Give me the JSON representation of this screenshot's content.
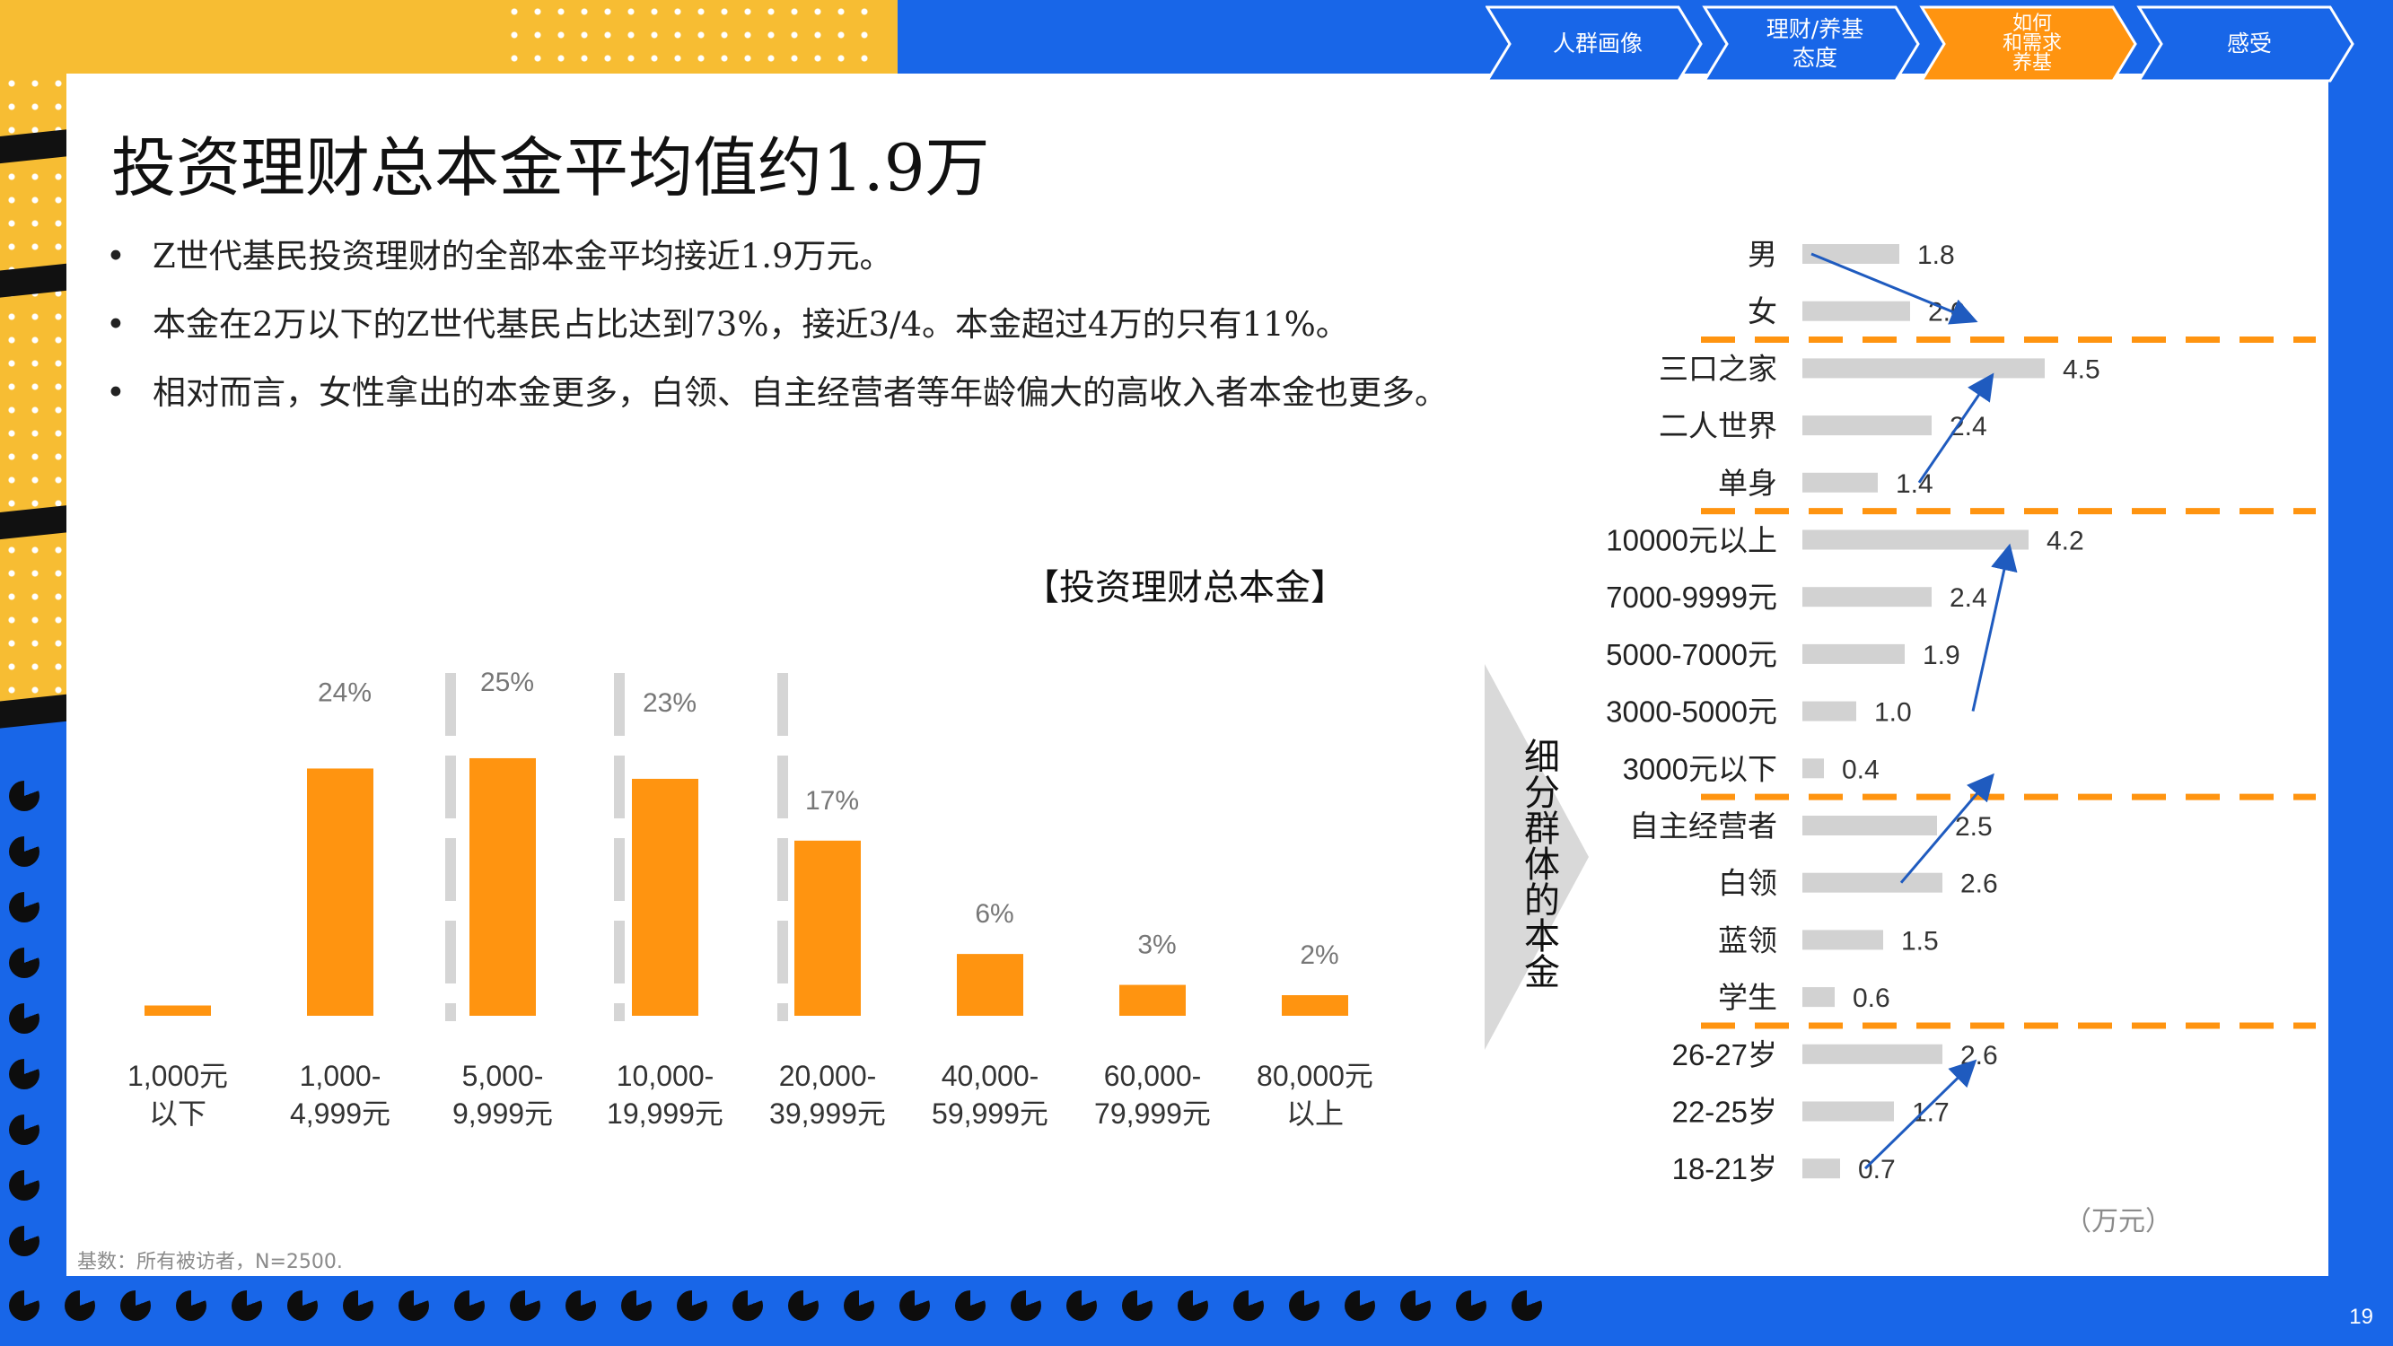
{
  "slide": {
    "title": "投资理财总本金平均值约1.9万",
    "page_number": "19",
    "bullets": [
      "Z世代基民投资理财的全部本金平均接近1.9万元。",
      "本金在2万以下的Z世代基民占比达到73%，接近3/4。本金超过4万的只有11%。",
      "相对而言，女性拿出的本金更多，白领、自主经营者等年龄偏大的高收入者本金也更多。"
    ],
    "base_note": "基数：所有被访者，N=2500.",
    "side_label": "细分群体的本金",
    "unit_label": "（万元）"
  },
  "nav": {
    "tabs": [
      {
        "label": "人群画像",
        "active": false
      },
      {
        "label": "理财/养基\n态度",
        "active": false
      },
      {
        "label": "如何\n和需求\n养基",
        "active": true
      },
      {
        "label": "感受",
        "active": false
      }
    ]
  },
  "colors": {
    "background_blue": "#1866e8",
    "accent_orange": "#ff9410",
    "bar_gray": "#d2d2d2",
    "deco_yellow": "#f7bd33",
    "arrow_blue": "#1f5bbf"
  },
  "chart_data": [
    {
      "type": "bar",
      "title": "【投资理财总本金】",
      "categories": [
        "1,000元\n以下",
        "1,000-\n4,999元",
        "5,000-\n9,999元",
        "10,000-\n19,999元",
        "20,000-\n39,999元",
        "40,000-\n59,999元",
        "60,000-\n79,999元",
        "80,000元\n以上"
      ],
      "values": [
        1,
        24,
        25,
        23,
        17,
        6,
        3,
        2
      ],
      "value_labels": [
        "",
        "24%",
        "25%",
        "23%",
        "17%",
        "6%",
        "3%",
        "2%"
      ],
      "value_unit": "%",
      "ylim": [
        0,
        27
      ],
      "color": "#ff9410",
      "grid": false
    },
    {
      "type": "bar",
      "orientation": "horizontal",
      "unit": "万元",
      "color": "#d2d2d2",
      "xlim": [
        0,
        5
      ],
      "groups": [
        {
          "labels": [
            "男",
            "女"
          ],
          "values": [
            1.8,
            2.0
          ],
          "value_labels": [
            "1.8",
            "2.0"
          ]
        },
        {
          "labels": [
            "三口之家",
            "二人世界",
            "单身"
          ],
          "values": [
            4.5,
            2.4,
            1.4
          ],
          "value_labels": [
            "4.5",
            "2.4",
            "1.4"
          ]
        },
        {
          "labels": [
            "10000元以上",
            "7000-9999元",
            "5000-7000元",
            "3000-5000元",
            "3000元以下"
          ],
          "values": [
            4.2,
            2.4,
            1.9,
            1.0,
            0.4
          ],
          "value_labels": [
            "4.2",
            "2.4",
            "1.9",
            "1.0",
            "0.4"
          ]
        },
        {
          "labels": [
            "自主经营者",
            "白领",
            "蓝领",
            "学生"
          ],
          "values": [
            2.5,
            2.6,
            1.5,
            0.6
          ],
          "value_labels": [
            "2.5",
            "2.6",
            "1.5",
            "0.6"
          ]
        },
        {
          "labels": [
            "26-27岁",
            "22-25岁",
            "18-21岁"
          ],
          "values": [
            2.6,
            1.7,
            0.7
          ],
          "value_labels": [
            "2.6",
            "1.7",
            "0.7"
          ]
        }
      ]
    }
  ]
}
